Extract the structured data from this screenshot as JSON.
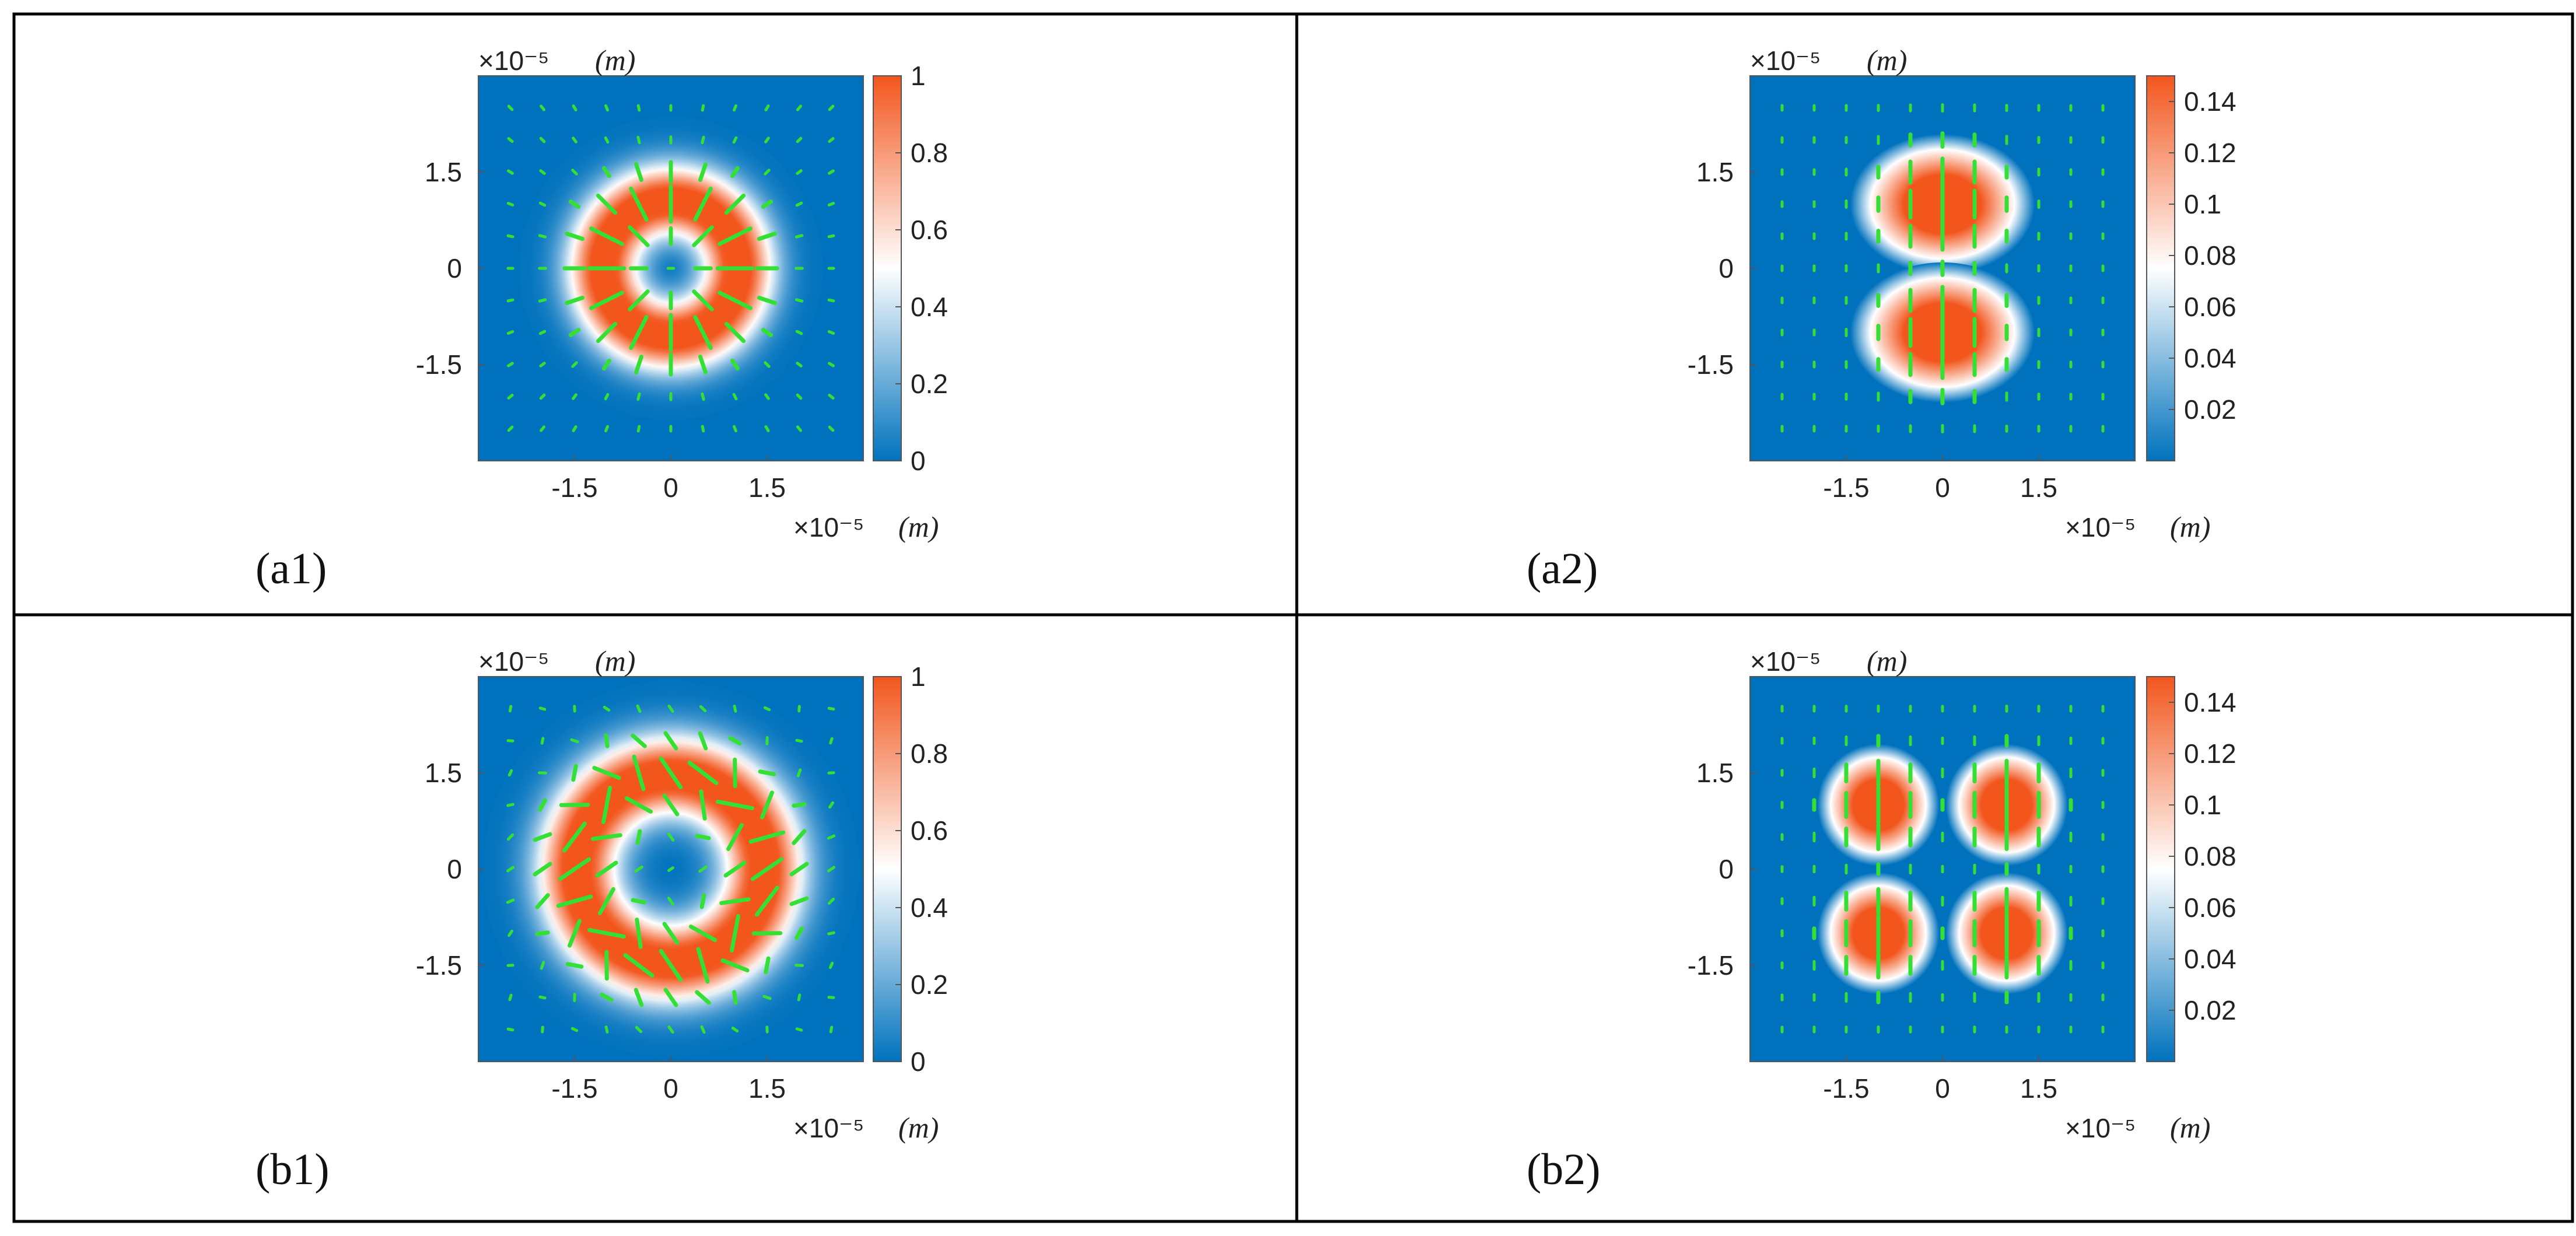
{
  "chart_data": [
    {
      "panel_label": "(a1)",
      "type": "heatmap",
      "pattern": "single-ring",
      "peaks": [
        [
          0,
          0
        ]
      ],
      "ring_radius": 1.05,
      "ring_width": 0.55,
      "peak_value": 1,
      "x_range": [
        -3,
        3
      ],
      "y_range": [
        -3,
        3
      ],
      "x_ticks": [
        "-1.5",
        "0",
        "1.5"
      ],
      "y_ticks": [
        "1.5",
        "0",
        "-1.5"
      ],
      "x_exponent": "×10⁻⁵",
      "x_unit": "(m)",
      "y_exponent": "×10⁻⁵",
      "y_unit": "(m)",
      "colorbar": {
        "min": 0,
        "max": 1,
        "ticks": [
          "0",
          "0.2",
          "0.4",
          "0.6",
          "0.8",
          "1"
        ]
      },
      "vector_field": "radial"
    },
    {
      "panel_label": "(a2)",
      "type": "heatmap",
      "pattern": "two-lobes",
      "peaks": [
        [
          0,
          1
        ],
        [
          0,
          -1
        ]
      ],
      "ring_radius": 0,
      "ring_width": 0.6,
      "peak_value": 0.15,
      "x_range": [
        -3,
        3
      ],
      "y_range": [
        -3,
        3
      ],
      "x_ticks": [
        "-1.5",
        "0",
        "1.5"
      ],
      "y_ticks": [
        "1.5",
        "0",
        "-1.5"
      ],
      "x_exponent": "×10⁻⁵",
      "x_unit": "(m)",
      "y_exponent": "×10⁻⁵",
      "y_unit": "(m)",
      "colorbar": {
        "min": 0,
        "max": 0.15,
        "ticks": [
          "0.02",
          "0.04",
          "0.06",
          "0.08",
          "0.1",
          "0.12",
          "0.14"
        ]
      },
      "vector_field": "vertical"
    },
    {
      "panel_label": "(b1)",
      "type": "heatmap",
      "pattern": "single-ring",
      "peaks": [
        [
          0,
          0
        ]
      ],
      "ring_radius": 1.45,
      "ring_width": 0.62,
      "peak_value": 1,
      "x_range": [
        -3,
        3
      ],
      "y_range": [
        -3,
        3
      ],
      "x_ticks": [
        "-1.5",
        "0",
        "1.5"
      ],
      "y_ticks": [
        "1.5",
        "0",
        "-1.5"
      ],
      "x_exponent": "×10⁻⁵",
      "x_unit": "(m)",
      "y_exponent": "×10⁻⁵",
      "y_unit": "(m)",
      "colorbar": {
        "min": 0,
        "max": 1,
        "ticks": [
          "0",
          "0.2",
          "0.4",
          "0.6",
          "0.8",
          "1"
        ]
      },
      "vector_field": "mixed"
    },
    {
      "panel_label": "(b2)",
      "type": "heatmap",
      "pattern": "four-lobes",
      "peaks": [
        [
          -1,
          1
        ],
        [
          1,
          1
        ],
        [
          -1,
          -1
        ],
        [
          1,
          -1
        ]
      ],
      "ring_radius": 0,
      "ring_width": 0.5,
      "peak_value": 0.15,
      "x_range": [
        -3,
        3
      ],
      "y_range": [
        -3,
        3
      ],
      "x_ticks": [
        "-1.5",
        "0",
        "1.5"
      ],
      "y_ticks": [
        "1.5",
        "0",
        "-1.5"
      ],
      "x_exponent": "×10⁻⁵",
      "x_unit": "(m)",
      "y_exponent": "×10⁻⁵",
      "y_unit": "(m)",
      "colorbar": {
        "min": 0,
        "max": 0.15,
        "ticks": [
          "0.02",
          "0.04",
          "0.06",
          "0.08",
          "0.1",
          "0.12",
          "0.14"
        ]
      },
      "vector_field": "vertical"
    }
  ],
  "colors": {
    "low": "#0072BD",
    "mid": "#FFFFFF",
    "high": "#F2561D",
    "vector": "#33E033",
    "border": "#000000"
  }
}
